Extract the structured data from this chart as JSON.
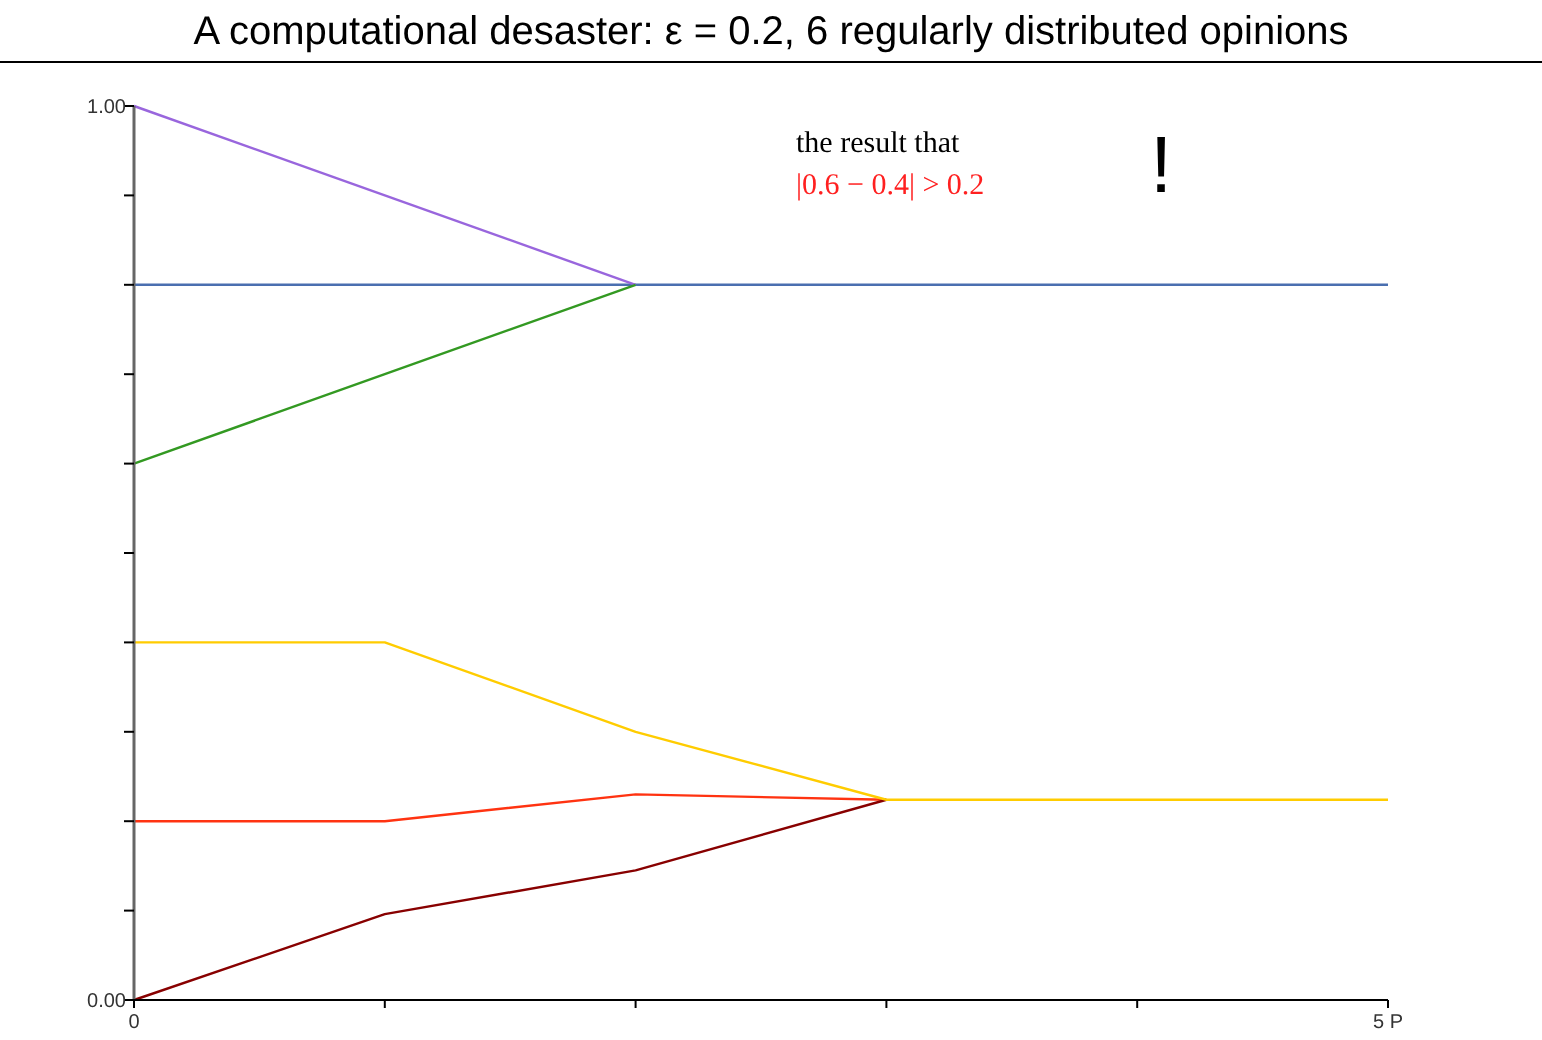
{
  "chart_data": {
    "type": "line",
    "title": "A computational desaster: ε = 0.2, 6 regularly distributed opinions",
    "x": [
      0,
      1,
      2,
      3,
      4,
      5
    ],
    "series": [
      {
        "color": "#4a6fb0",
        "values": [
          0.8,
          0.8,
          0.8,
          0.8,
          0.8,
          0.8
        ]
      },
      {
        "color": "#9966dd",
        "values": [
          1.0,
          0.9,
          0.8,
          null,
          null,
          null
        ]
      },
      {
        "color": "#339922",
        "values": [
          0.6,
          0.7,
          0.8,
          null,
          null,
          null
        ]
      },
      {
        "color": "#ff3311",
        "values": [
          0.2,
          0.2,
          0.23,
          0.224,
          null,
          null
        ]
      },
      {
        "color": "#880000",
        "values": [
          0,
          0.096,
          0.145,
          0.224,
          null,
          null
        ]
      },
      {
        "color": "#ffcc00",
        "values": [
          0.4,
          0.4,
          0.3,
          0.224,
          0.224,
          0.224
        ]
      }
    ],
    "xlim": [
      0,
      5
    ],
    "xticks": [
      0,
      {
        "value": 1,
        "label": null
      },
      {
        "value": 2,
        "label": null
      },
      {
        "value": 3,
        "label": null
      },
      {
        "value": 4,
        "label": null
      },
      {
        "value": 5,
        "label": "5 P"
      }
    ],
    "ylim": [
      0,
      1
    ],
    "yticks": [
      {
        "value": 0,
        "label": "0.00"
      },
      {
        "value": 0.1,
        "label": null
      },
      {
        "value": 0.2,
        "label": null
      },
      {
        "value": 0.3,
        "label": null
      },
      {
        "value": 0.4,
        "label": null
      },
      {
        "value": 0.5,
        "label": null
      },
      {
        "value": 0.6,
        "label": null
      },
      {
        "value": 0.7,
        "label": null
      },
      {
        "value": 0.8,
        "label": null
      },
      {
        "value": 0.9,
        "label": null
      },
      {
        "value": 1,
        "label": "1.00"
      }
    ],
    "annotations": [
      "the result that",
      "|0.6 − 0.4| > 0.2",
      "!"
    ],
    "grid": false,
    "marker": "none",
    "line_style": "solid"
  }
}
